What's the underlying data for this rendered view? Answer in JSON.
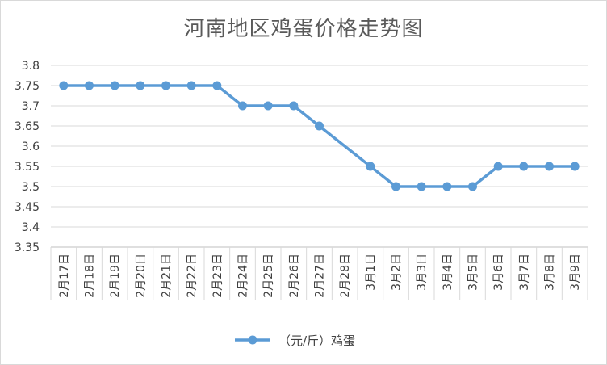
{
  "chart_data": {
    "type": "line",
    "title": "河南地区鸡蛋价格走势图",
    "categories": [
      "2月17日",
      "2月18日",
      "2月19日",
      "2月20日",
      "2月21日",
      "2月22日",
      "2月23日",
      "2月24日",
      "2月25日",
      "2月26日",
      "2月27日",
      "2月28日",
      "3月1日",
      "3月2日",
      "3月3日",
      "3月4日",
      "3月5日",
      "3月6日",
      "3月7日",
      "3月8日",
      "3月9日"
    ],
    "series": [
      {
        "name": "（元/斤）鸡蛋",
        "values": [
          3.75,
          3.75,
          3.75,
          3.75,
          3.75,
          3.75,
          3.75,
          3.7,
          3.7,
          3.7,
          3.65,
          null,
          3.55,
          3.5,
          3.5,
          3.5,
          3.5,
          3.55,
          3.55,
          3.55,
          3.55
        ]
      }
    ],
    "ylim": [
      3.35,
      3.8
    ],
    "yticks": [
      "3.35",
      "3.4",
      "3.45",
      "3.5",
      "3.55",
      "3.6",
      "3.65",
      "3.7",
      "3.75",
      "3.8"
    ],
    "grid": true,
    "legend_position": "bottom",
    "colors": {
      "series": "#5b9bd5",
      "grid": "#d9d9d9",
      "axis": "#bfbfbf"
    }
  }
}
